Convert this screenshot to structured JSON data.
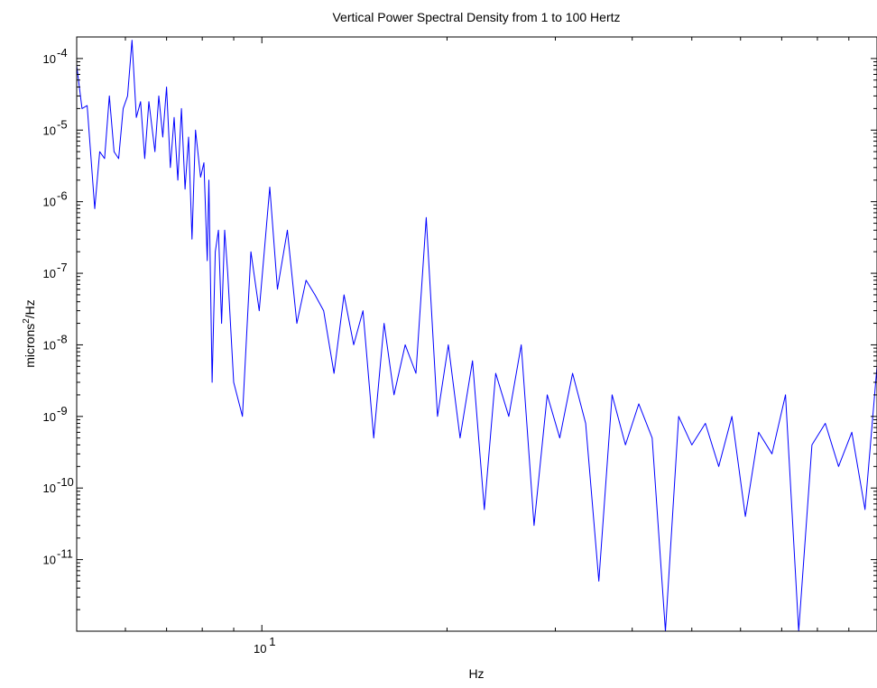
{
  "chart_data": {
    "type": "line",
    "title": "Vertical  Power Spectral Density from 1 to 100 Hertz",
    "xlabel": "Hz",
    "ylabel": "microns",
    "ylabel_sup": "2",
    "ylabel_tail": "/Hz",
    "x_scale": "log",
    "y_scale": "log",
    "xlim": [
      5,
      100
    ],
    "ylim": [
      1e-12,
      0.0002
    ],
    "grid": false,
    "line_color": "#0000ff",
    "x_ticks": [
      {
        "value": 10,
        "base": "10",
        "exp": "1"
      }
    ],
    "y_ticks": [
      {
        "value": 0.0001,
        "base": "10",
        "exp": "-4"
      },
      {
        "value": 1e-05,
        "base": "10",
        "exp": "-5"
      },
      {
        "value": 1e-06,
        "base": "10",
        "exp": "-6"
      },
      {
        "value": 1e-07,
        "base": "10",
        "exp": "-7"
      },
      {
        "value": 1e-08,
        "base": "10",
        "exp": "-8"
      },
      {
        "value": 1e-09,
        "base": "10",
        "exp": "-9"
      },
      {
        "value": 1e-10,
        "base": "10",
        "exp": "-10"
      },
      {
        "value": 1e-11,
        "base": "10",
        "exp": "-11"
      }
    ],
    "series": [
      {
        "x": [
          5.0,
          5.1,
          5.2,
          5.35,
          5.45,
          5.55,
          5.65,
          5.75,
          5.85,
          5.95,
          6.05,
          6.15,
          6.25,
          6.35,
          6.45,
          6.55,
          6.7,
          6.8,
          6.9,
          7.0,
          7.1,
          7.2,
          7.3,
          7.4,
          7.5,
          7.6,
          7.7,
          7.8,
          7.95,
          8.05,
          8.15,
          8.2,
          8.3,
          8.4,
          8.5,
          8.6,
          8.7,
          8.8,
          9.0,
          9.3,
          9.6,
          9.9,
          10.3,
          10.6,
          11.0,
          11.4,
          11.8,
          12.2,
          12.6,
          13.1,
          13.6,
          14.1,
          14.6,
          15.2,
          15.8,
          16.4,
          17.1,
          17.8,
          18.5,
          19.3,
          20.1,
          21.0,
          22.0,
          23.0,
          24.0,
          25.2,
          26.4,
          27.7,
          29.1,
          30.5,
          32.0,
          33.6,
          35.3,
          37.1,
          39.0,
          41.0,
          43.1,
          45.3,
          47.6,
          50.0,
          52.6,
          55.3,
          58.1,
          61.1,
          64.2,
          67.5,
          71.0,
          74.6,
          78.4,
          82.4,
          86.6,
          91.0,
          95.6,
          100.0
        ],
        "y": [
          8e-05,
          2e-05,
          2.2e-05,
          8e-07,
          5e-06,
          4e-06,
          3e-05,
          5e-06,
          4e-06,
          2e-05,
          3e-05,
          0.00018,
          1.5e-05,
          2.5e-05,
          4e-06,
          2.5e-05,
          5e-06,
          3e-05,
          8e-06,
          4e-05,
          3e-06,
          1.5e-05,
          2e-06,
          2e-05,
          1.5e-06,
          8e-06,
          3e-07,
          1e-05,
          2.2e-06,
          3.5e-06,
          1.5e-07,
          2e-06,
          3e-09,
          2e-07,
          4e-07,
          2e-08,
          4e-07,
          1e-07,
          3e-09,
          1e-09,
          2e-07,
          3e-08,
          1.6e-06,
          6e-08,
          4e-07,
          2e-08,
          8e-08,
          5e-08,
          3e-08,
          4e-09,
          5e-08,
          1e-08,
          3e-08,
          5e-10,
          2e-08,
          2e-09,
          1e-08,
          4e-09,
          6e-07,
          1e-09,
          1e-08,
          5e-10,
          6e-09,
          5e-11,
          4e-09,
          1e-09,
          1e-08,
          3e-11,
          2e-09,
          5e-10,
          4e-09,
          8e-10,
          5e-12,
          2e-09,
          4e-10,
          1.5e-09,
          5e-10,
          1e-12,
          1e-09,
          4e-10,
          8e-10,
          2e-10,
          1e-09,
          4e-11,
          6e-10,
          3e-10,
          2e-09,
          1e-12,
          4e-10,
          8e-10,
          2e-10,
          6e-10,
          5e-11,
          5e-09
        ]
      }
    ]
  }
}
